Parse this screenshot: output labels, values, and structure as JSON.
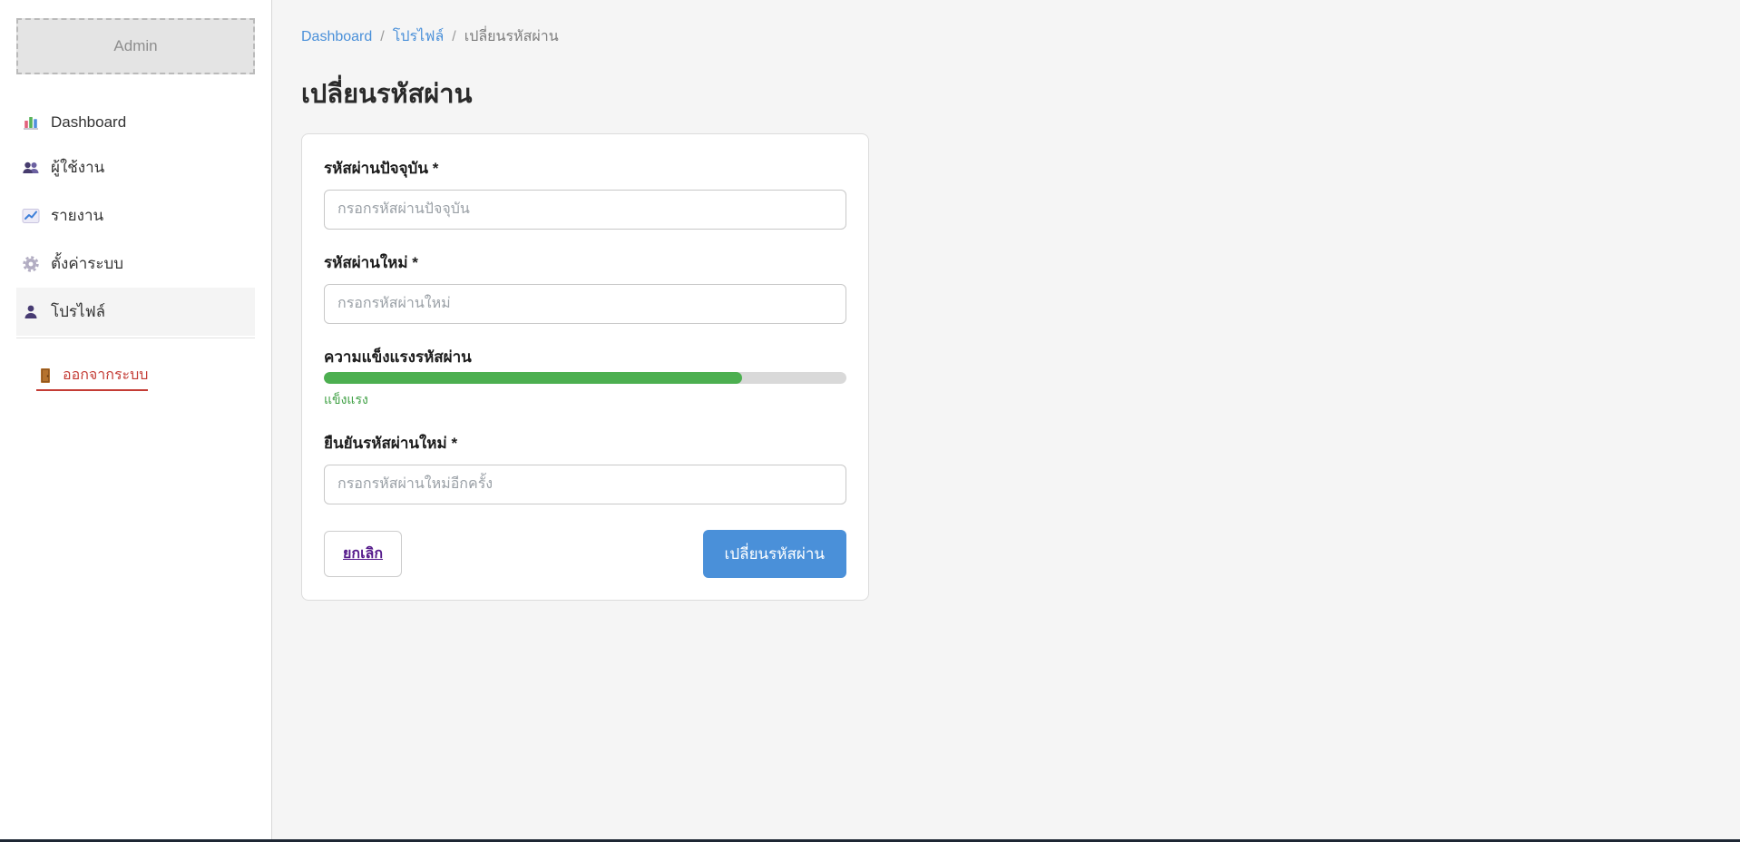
{
  "app": {
    "logo_text": "Admin"
  },
  "sidebar": {
    "items": [
      {
        "label": "Dashboard",
        "icon": "bar-chart-icon",
        "active": false
      },
      {
        "label": "ผู้ใช้งาน",
        "icon": "users-icon",
        "active": false
      },
      {
        "label": "รายงาน",
        "icon": "line-chart-icon",
        "active": false
      },
      {
        "label": "ตั้งค่าระบบ",
        "icon": "gear-icon",
        "active": false
      },
      {
        "label": "โปรไฟล์",
        "icon": "person-icon",
        "active": true
      }
    ],
    "logout": {
      "label": "ออกจากระบบ",
      "icon": "door-icon"
    }
  },
  "breadcrumb": {
    "separator": "/",
    "items": [
      {
        "label": "Dashboard",
        "link": true
      },
      {
        "label": "โปรไฟล์",
        "link": true
      },
      {
        "label": "เปลี่ยนรหัสผ่าน",
        "link": false
      }
    ]
  },
  "page": {
    "title": "เปลี่ยนรหัสผ่าน"
  },
  "form": {
    "current_password": {
      "label": "รหัสผ่านปัจจุบัน *",
      "placeholder": "กรอกรหัสผ่านปัจจุบัน",
      "value": ""
    },
    "new_password": {
      "label": "รหัสผ่านใหม่ *",
      "placeholder": "กรอกรหัสผ่านใหม่",
      "value": ""
    },
    "strength": {
      "label": "ความแข็งแรงรหัสผ่าน",
      "percent": 80,
      "status": "แข็งแรง",
      "bar_color": "#4caf50"
    },
    "confirm_password": {
      "label": "ยืนยันรหัสผ่านใหม่ *",
      "placeholder": "กรอกรหัสผ่านใหม่อีกครั้ง",
      "value": ""
    },
    "cancel_label": "ยกเลิก",
    "submit_label": "เปลี่ยนรหัสผ่าน"
  },
  "colors": {
    "accent_blue": "#4a90d9",
    "strength_green": "#4caf50",
    "logout_red": "#c43c35",
    "cancel_purple": "#551a8b",
    "main_background": "#f5f5f5"
  }
}
